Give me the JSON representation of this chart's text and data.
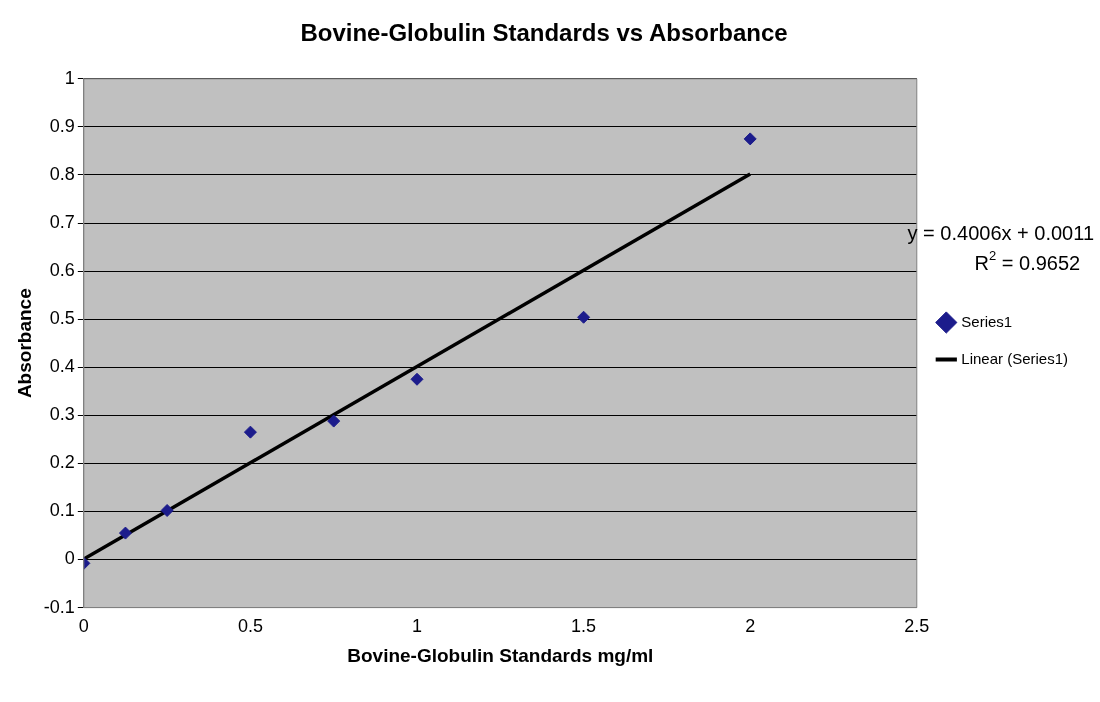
{
  "chart_data": {
    "type": "scatter",
    "title": "Bovine-Globulin Standards vs Absorbance",
    "xlabel": "Bovine-Globulin Standards mg/ml",
    "ylabel": "Absorbance",
    "series": [
      {
        "name": "Series1",
        "color": "#1c1c8c",
        "marker": "diamond",
        "x": [
          0,
          0.125,
          0.25,
          0.5,
          0.75,
          1,
          1.5,
          2
        ],
        "values": [
          -0.008,
          0.055,
          0.102,
          0.265,
          0.288,
          0.375,
          0.504,
          0.875
        ]
      },
      {
        "name": "Linear (Series1)",
        "type": "line",
        "color": "#000000",
        "marker": "none",
        "x": [
          0,
          2
        ],
        "values": [
          0.001,
          0.802
        ]
      }
    ],
    "annotations": [
      "y = 0.4006x + 0.0011",
      "R$^{2}$ = 0.9652"
    ],
    "xlim": [
      0,
      2.5
    ],
    "xticks": [
      0,
      0.5,
      1,
      1.5,
      2,
      2.5
    ],
    "ylim": [
      -0.1,
      1
    ],
    "yticks": [
      -0.1,
      0,
      0.1,
      0.2,
      0.3,
      0.4,
      0.5,
      0.6,
      0.7,
      0.8,
      0.9,
      1
    ],
    "grid": "y",
    "legend": "right"
  }
}
